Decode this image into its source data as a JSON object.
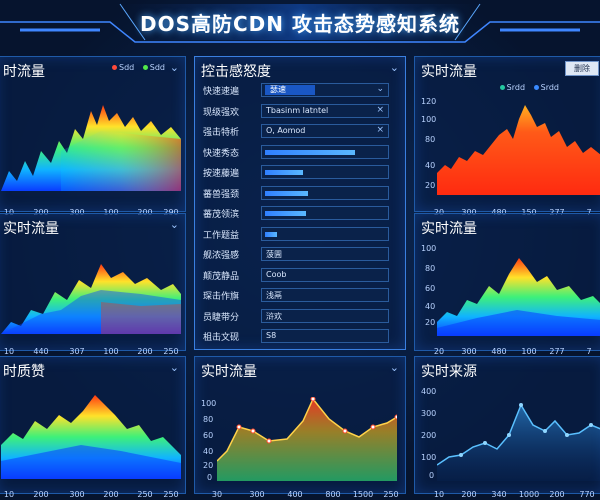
{
  "header": {
    "title": "DOS高防CDN 攻击态势感知系统"
  },
  "colors": {
    "accent": "#2f7fff",
    "panel_border": "#1f5aa8",
    "background": "#06142e"
  },
  "panels": {
    "top_left": {
      "title": "时流量",
      "legend": [
        "Sdd",
        "Sdd"
      ],
      "x_ticks": [
        "10",
        "200",
        "300",
        "100",
        "200",
        "290"
      ]
    },
    "mid_left": {
      "title": "实时流量",
      "x_ticks": [
        "10",
        "440",
        "307",
        "100",
        "200",
        "250"
      ]
    },
    "bottom_left": {
      "title": "时质赞",
      "x_ticks": [
        "10",
        "200",
        "300",
        "200",
        "250",
        "250"
      ]
    },
    "top_right": {
      "title": "实时流量",
      "button": "删除",
      "legend": [
        "Srdd",
        "Srdd"
      ],
      "y_ticks": [
        "120",
        "100",
        "80",
        "40",
        "20"
      ],
      "x_ticks": [
        "20",
        "300",
        "480",
        "150",
        "277",
        "7"
      ]
    },
    "mid_right": {
      "title": "实时流量",
      "y_ticks": [
        "100",
        "80",
        "60",
        "40",
        "20"
      ],
      "x_ticks": [
        "20",
        "300",
        "480",
        "100",
        "277",
        "7"
      ]
    },
    "bottom_center": {
      "title": "实时流量",
      "y_ticks": [
        "100",
        "80",
        "60",
        "40",
        "20",
        "0"
      ],
      "x_ticks": [
        "30",
        "300",
        "400",
        "800",
        "1500",
        "250"
      ]
    },
    "bottom_right": {
      "title": "实时来源",
      "y_ticks": [
        "400",
        "300",
        "200",
        "100",
        "0"
      ],
      "x_ticks": [
        "10",
        "200",
        "340",
        "1000",
        "200",
        "770"
      ]
    }
  },
  "control": {
    "title": "控击感怒度",
    "rows": [
      {
        "label": "快速速遍",
        "type": "select",
        "value": "瑟速"
      },
      {
        "label": "现级强欢",
        "type": "input",
        "value": "Tbasinm latntel"
      },
      {
        "label": "强击特析",
        "type": "input",
        "value": "O, Aomod"
      },
      {
        "label": "快速秀态",
        "type": "bar",
        "level": 0.75
      },
      {
        "label": "按速藤遍",
        "type": "bar",
        "level": 0.32
      },
      {
        "label": "蕃兽强颈",
        "type": "bar",
        "level": 0.36
      },
      {
        "label": "蕃茂领滨",
        "type": "bar",
        "level": 0.34
      },
      {
        "label": "工作题益",
        "type": "bar",
        "level": 0.1
      },
      {
        "label": "舰浓强感",
        "type": "text",
        "value": "菠圊"
      },
      {
        "label": "颠茂静品",
        "type": "text",
        "value": "Coob"
      },
      {
        "label": "琛击作旗",
        "type": "text",
        "value": "浅鬲"
      },
      {
        "label": "员睫带分",
        "type": "text",
        "value": "浒欢"
      },
      {
        "label": "柤击文砚",
        "type": "text",
        "value": "S8"
      }
    ]
  }
}
